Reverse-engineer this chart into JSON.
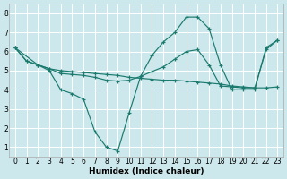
{
  "xlabel": "Humidex (Indice chaleur)",
  "background_color": "#cde8ec",
  "grid_color": "#ffffff",
  "line_color": "#1a7a6e",
  "xlim": [
    -0.5,
    23.5
  ],
  "ylim": [
    0.5,
    8.5
  ],
  "yticks": [
    1,
    2,
    3,
    4,
    5,
    6,
    7,
    8
  ],
  "xticks": [
    0,
    1,
    2,
    3,
    4,
    5,
    6,
    7,
    8,
    9,
    10,
    11,
    12,
    13,
    14,
    15,
    16,
    17,
    18,
    19,
    20,
    21,
    22,
    23
  ],
  "series": [
    {
      "x": [
        0,
        1,
        2,
        3,
        4,
        5,
        6,
        7,
        8,
        9,
        10,
        11,
        12,
        13,
        14,
        15,
        16,
        17,
        18,
        19,
        20,
        21,
        22,
        23
      ],
      "y": [
        6.2,
        5.5,
        5.3,
        5.0,
        4.0,
        3.8,
        3.5,
        1.8,
        1.0,
        0.8,
        2.8,
        4.7,
        5.8,
        6.5,
        7.0,
        7.8,
        7.8,
        7.2,
        5.3,
        4.0,
        4.0,
        4.0,
        6.2,
        6.6
      ]
    },
    {
      "x": [
        0,
        1,
        2,
        3,
        4,
        5,
        6,
        7,
        8,
        9,
        10,
        11,
        12,
        13,
        14,
        15,
        16,
        17,
        18,
        19,
        20,
        21,
        22,
        23
      ],
      "y": [
        6.2,
        5.5,
        5.3,
        5.1,
        5.0,
        4.95,
        4.9,
        4.85,
        4.8,
        4.75,
        4.65,
        4.6,
        4.55,
        4.5,
        4.5,
        4.45,
        4.4,
        4.35,
        4.3,
        4.2,
        4.15,
        4.1,
        4.1,
        4.15
      ]
    },
    {
      "x": [
        0,
        2,
        3,
        4,
        5,
        6,
        7,
        8,
        9,
        10,
        11,
        12,
        13,
        14,
        15,
        16,
        17,
        18,
        19,
        20,
        21,
        22,
        23
      ],
      "y": [
        6.2,
        5.3,
        5.1,
        4.85,
        4.8,
        4.75,
        4.65,
        4.5,
        4.45,
        4.5,
        4.7,
        4.95,
        5.2,
        5.6,
        6.0,
        6.1,
        5.3,
        4.2,
        4.15,
        4.1,
        4.1,
        6.1,
        6.6
      ]
    }
  ]
}
